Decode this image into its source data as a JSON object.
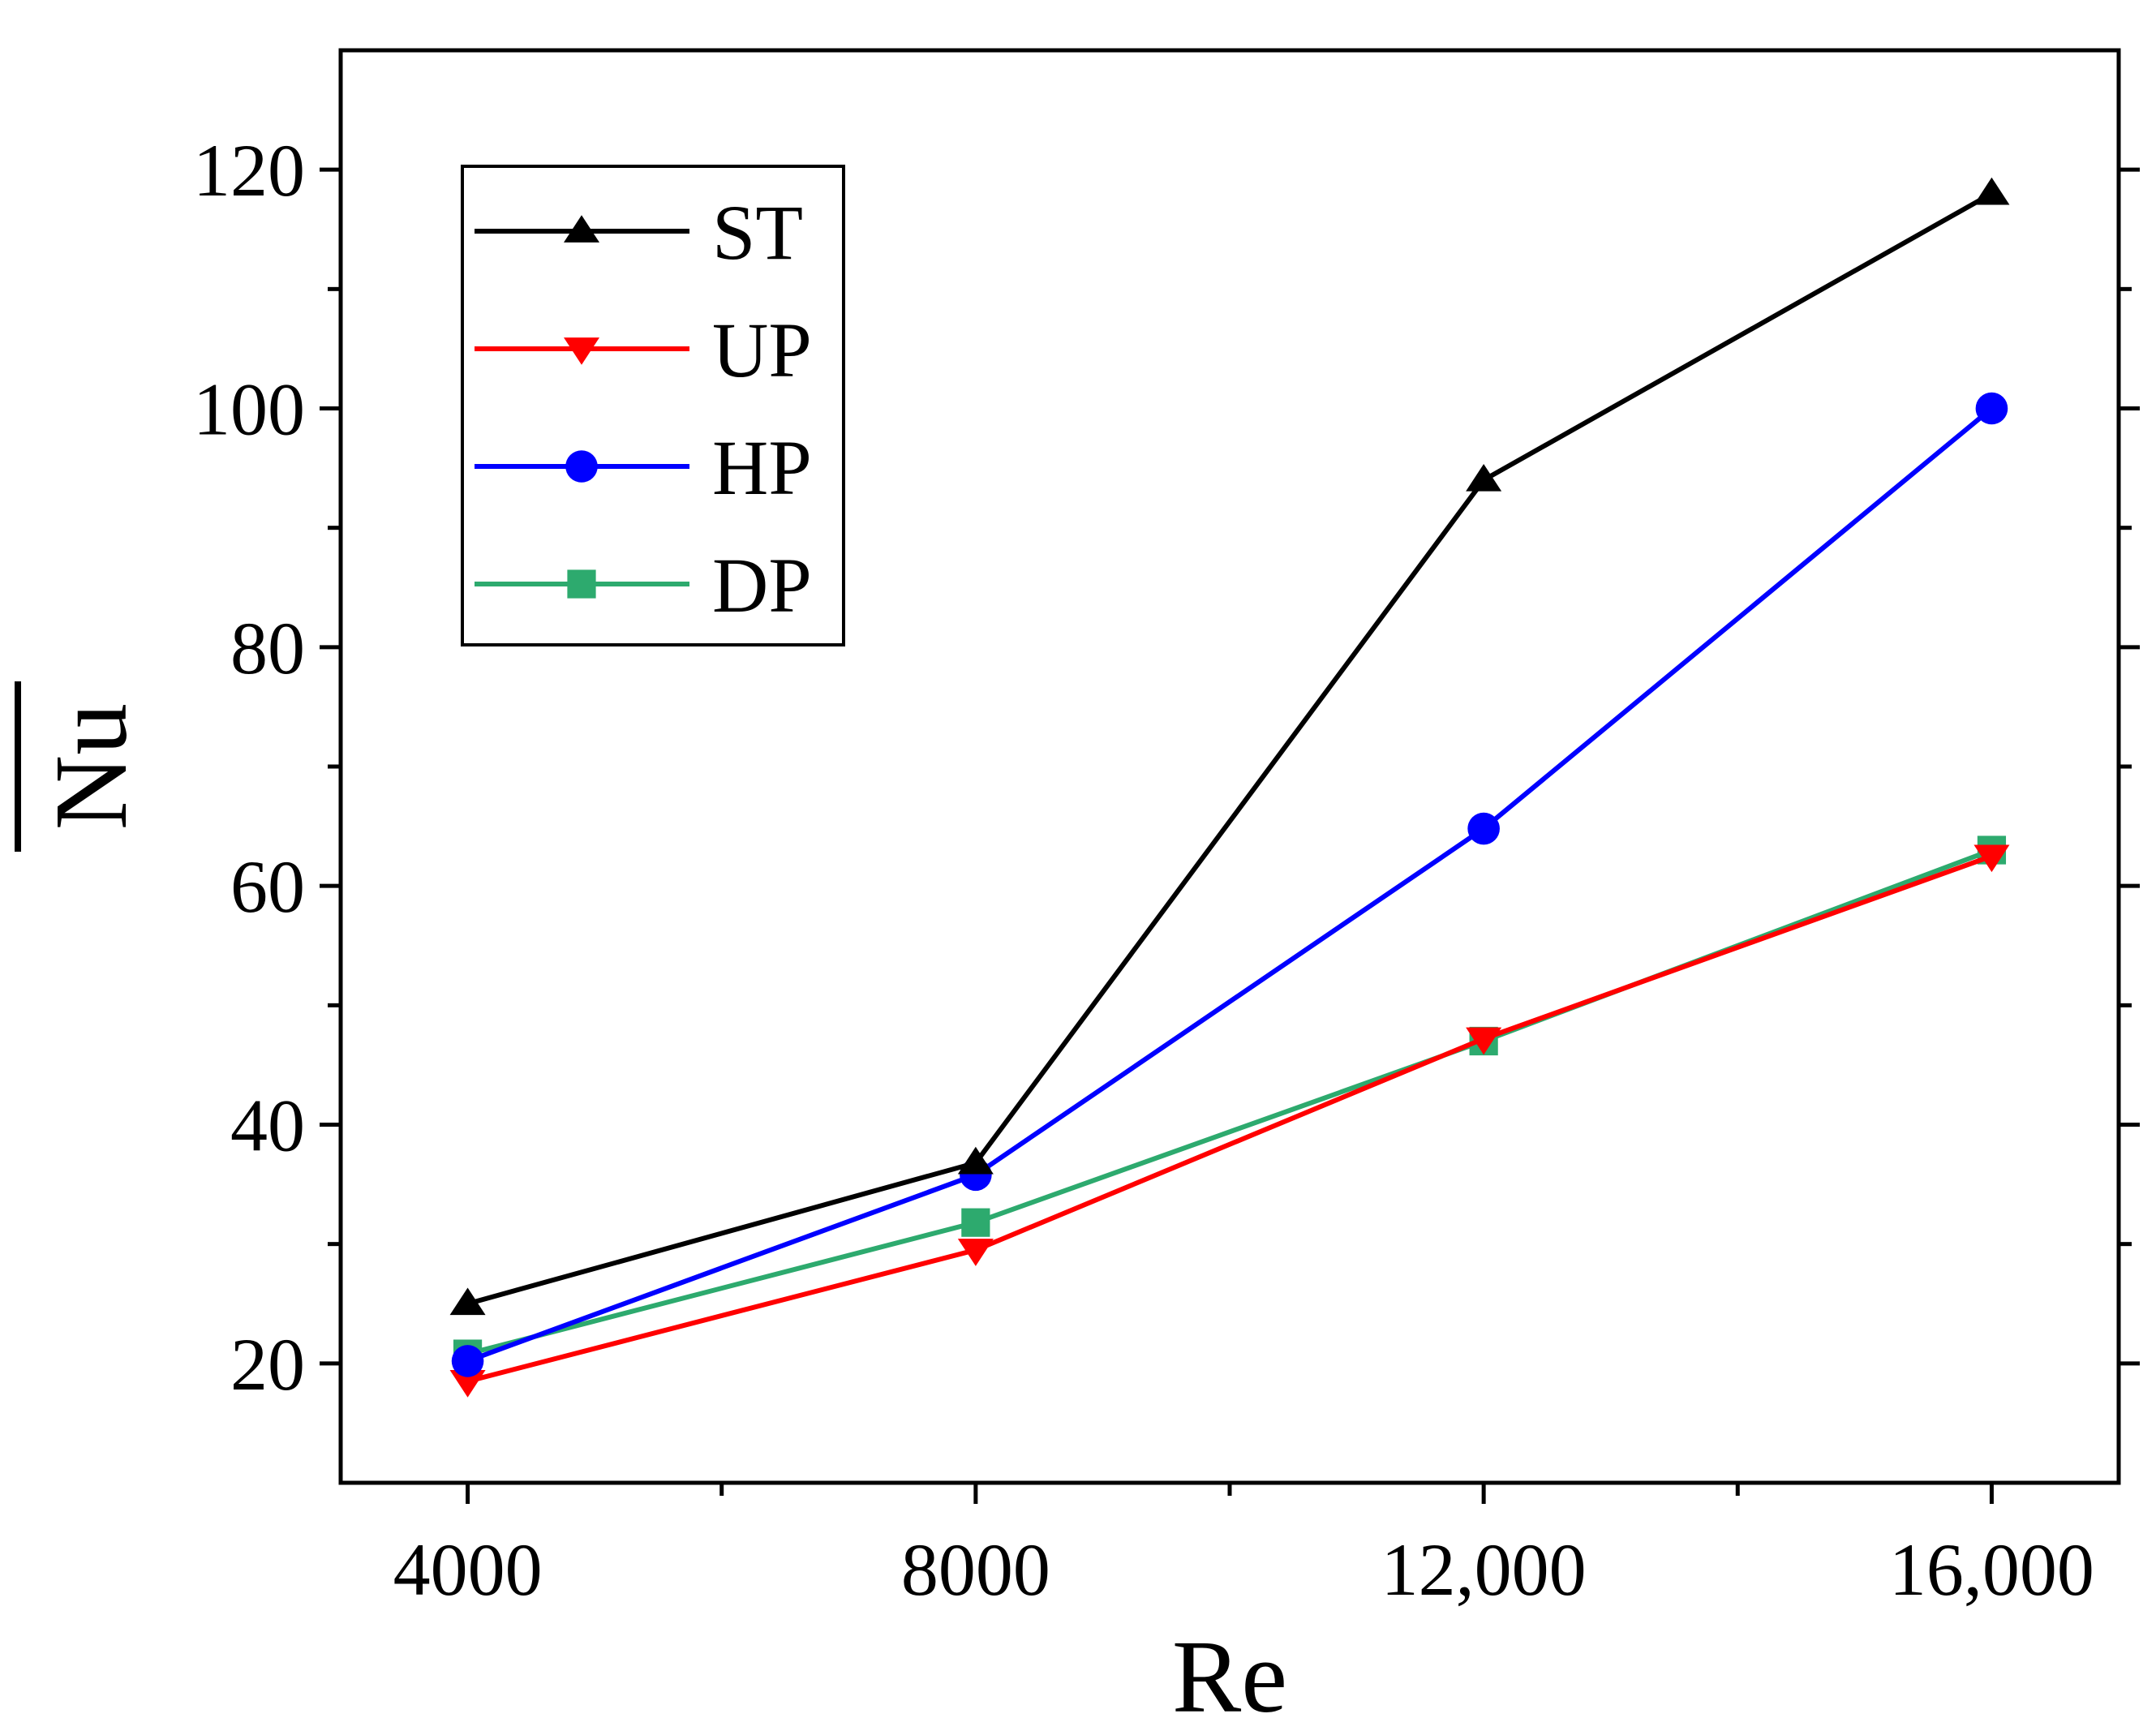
{
  "chart_data": {
    "type": "line",
    "title": "",
    "xlabel": "Re",
    "ylabel": "Nu",
    "ylabel_overline": true,
    "x": [
      4000,
      8000,
      12000,
      16000
    ],
    "xlim": [
      3000,
      17000
    ],
    "ylim": [
      10,
      130
    ],
    "xticks": [
      4000,
      8000,
      12000,
      16000
    ],
    "xtick_labels": [
      "4000",
      "8000",
      "12,000",
      "16,000"
    ],
    "xminor_ticks": [
      6000,
      10000,
      14000
    ],
    "yticks": [
      20,
      40,
      60,
      80,
      100,
      120
    ],
    "ytick_labels": [
      "20",
      "40",
      "60",
      "80",
      "100",
      "120"
    ],
    "yminor_ticks": [
      30,
      50,
      70,
      90,
      110
    ],
    "grid": false,
    "legend_position": "top-left",
    "series": [
      {
        "name": "ST",
        "color": "#000000",
        "marker": "triangle-up",
        "values": [
          25.0,
          36.8,
          94.0,
          118.0
        ]
      },
      {
        "name": "UP",
        "color": "#ff0000",
        "marker": "triangle-down",
        "values": [
          18.5,
          29.5,
          47.2,
          62.5
        ]
      },
      {
        "name": "HP",
        "color": "#0000ff",
        "marker": "circle",
        "values": [
          20.2,
          35.8,
          64.8,
          100.0
        ]
      },
      {
        "name": "DP",
        "color": "#2daa6e",
        "marker": "square",
        "values": [
          20.8,
          31.8,
          47.0,
          63.0
        ]
      }
    ]
  }
}
